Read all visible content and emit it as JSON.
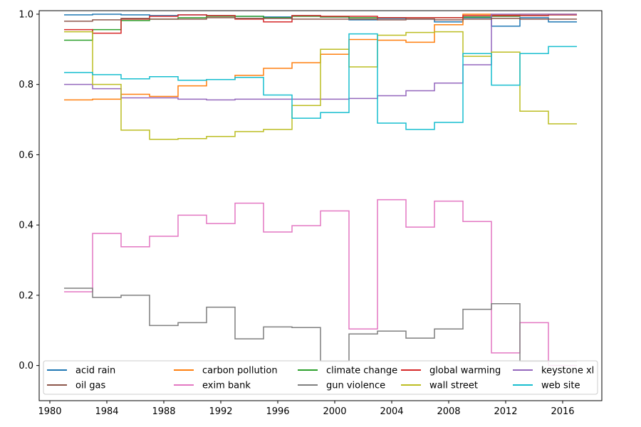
{
  "chart_data": {
    "type": "line",
    "drawstyle": "steps",
    "title": "",
    "xlabel": "",
    "ylabel": "",
    "xlim": [
      1979.25,
      2018.75
    ],
    "ylim": [
      -0.1,
      1.01
    ],
    "xticks": [
      1980,
      1984,
      1988,
      1992,
      1996,
      2000,
      2004,
      2008,
      2012,
      2016
    ],
    "yticks": [
      0.0,
      0.2,
      0.4,
      0.6,
      0.8,
      1.0
    ],
    "ytick_labels": [
      "0.0",
      "0.2",
      "0.4",
      "0.6",
      "0.8",
      "1.0"
    ],
    "x": [
      1981,
      1983,
      1985,
      1987,
      1989,
      1991,
      1993,
      1995,
      1997,
      1999,
      2001,
      2003,
      2005,
      2007,
      2009,
      2011,
      2013,
      2015,
      2017
    ],
    "legend": {
      "position": "lower-left",
      "ncol": 5
    },
    "series": [
      {
        "name": "acid rain",
        "color": "#1f77b4",
        "values": [
          0.998,
          1.0,
          0.998,
          0.996,
          0.998,
          0.996,
          0.994,
          0.992,
          0.996,
          0.992,
          0.984,
          0.988,
          0.986,
          0.978,
          0.99,
          0.966,
          0.99,
          0.978,
          0.978
        ]
      },
      {
        "name": "carbon pollution",
        "color": "#ff7f0e",
        "values": [
          0.756,
          0.758,
          0.772,
          0.766,
          0.796,
          0.814,
          0.826,
          0.846,
          0.862,
          0.886,
          0.928,
          0.926,
          0.92,
          0.97,
          1.0,
          0.998,
          1.0,
          1.0,
          1.0
        ]
      },
      {
        "name": "climate change",
        "color": "#2ca02c",
        "values": [
          0.926,
          0.956,
          0.982,
          0.986,
          0.99,
          0.994,
          0.994,
          0.99,
          0.994,
          0.992,
          0.99,
          0.99,
          0.99,
          0.99,
          0.992,
          0.994,
          0.996,
          0.998,
          0.998
        ]
      },
      {
        "name": "global warming",
        "color": "#d62728",
        "values": [
          0.956,
          0.946,
          0.986,
          0.994,
          0.998,
          0.996,
          0.986,
          0.978,
          0.996,
          0.994,
          0.994,
          0.99,
          0.99,
          0.99,
          0.996,
          0.996,
          0.996,
          0.998,
          0.998
        ]
      },
      {
        "name": "keystone xl",
        "color": "#9467bd",
        "values": [
          0.8,
          0.788,
          0.762,
          0.762,
          0.758,
          0.756,
          0.758,
          0.758,
          0.758,
          0.758,
          0.76,
          0.768,
          0.782,
          0.804,
          0.856,
          1.0,
          1.0,
          1.0,
          1.0
        ]
      },
      {
        "name": "oil gas",
        "color": "#8c564b",
        "values": [
          0.98,
          0.984,
          0.988,
          0.986,
          0.986,
          0.99,
          0.988,
          0.988,
          0.986,
          0.986,
          0.986,
          0.984,
          0.986,
          0.984,
          0.986,
          0.988,
          0.986,
          0.986,
          0.986
        ]
      },
      {
        "name": "exim bank",
        "color": "#e377c2",
        "values": [
          0.21,
          0.376,
          0.338,
          0.368,
          0.428,
          0.404,
          0.462,
          0.38,
          0.398,
          0.44,
          0.104,
          0.472,
          0.394,
          0.468,
          0.41,
          0.036,
          0.122,
          0.0,
          0.0
        ]
      },
      {
        "name": "gun violence",
        "color": "#7f7f7f",
        "values": [
          0.22,
          0.194,
          0.2,
          0.114,
          0.122,
          0.166,
          0.076,
          0.11,
          0.108,
          0.012,
          0.09,
          0.098,
          0.078,
          0.104,
          0.16,
          0.176,
          0.012,
          0.012,
          0.012
        ]
      },
      {
        "name": "wall street",
        "color": "#bcbd22",
        "values": [
          0.95,
          0.8,
          0.67,
          0.644,
          0.646,
          0.652,
          0.666,
          0.672,
          0.74,
          0.9,
          0.85,
          0.94,
          0.948,
          0.95,
          0.88,
          0.892,
          0.724,
          0.688,
          0.688
        ]
      },
      {
        "name": "web site",
        "color": "#17becf",
        "values": [
          0.834,
          0.828,
          0.816,
          0.822,
          0.812,
          0.814,
          0.82,
          0.77,
          0.704,
          0.72,
          0.944,
          0.69,
          0.672,
          0.692,
          0.888,
          0.798,
          0.888,
          0.908,
          0.908
        ]
      }
    ]
  }
}
